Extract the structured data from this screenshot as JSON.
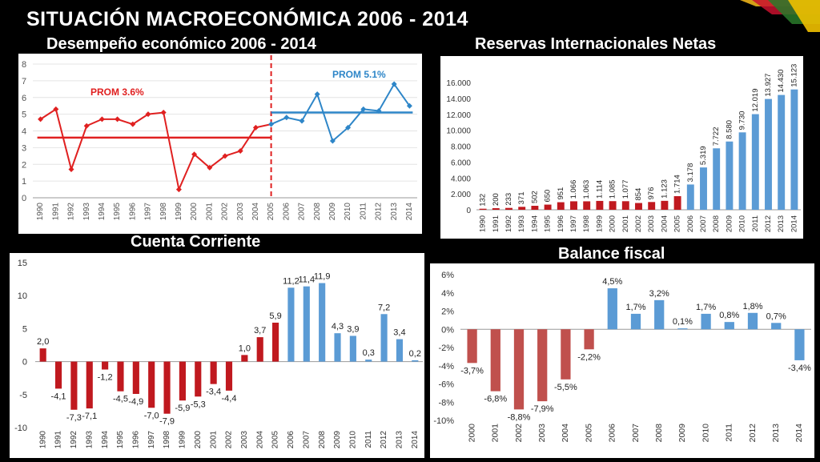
{
  "page_title": "SITUACIÓN MACROECONÓMICA 2006 - 2014",
  "colors": {
    "red": "#e02020",
    "blue": "#2e86c8",
    "bar_red": "#c0191f",
    "bar_blue": "#5b9bd5",
    "fiscal_red": "#c0504d"
  },
  "chart_data": [
    {
      "type": "line",
      "title": "Desempeño económico 2006 - 2014",
      "x": [
        "1990",
        "1991",
        "1992",
        "1993",
        "1994",
        "1995",
        "1996",
        "1997",
        "1998",
        "1999",
        "2000",
        "2001",
        "2002",
        "2003",
        "2004",
        "2005",
        "2006",
        "2007",
        "2008",
        "2009",
        "2010",
        "2011",
        "2012",
        "2013",
        "2014"
      ],
      "series": [
        {
          "values": [
            4.7,
            5.3,
            1.7,
            4.3,
            4.7,
            4.7,
            4.4,
            5.0,
            5.1,
            0.5,
            2.6,
            1.8,
            2.5,
            2.8,
            4.2,
            4.4,
            4.8,
            4.6,
            6.2,
            3.4,
            4.2,
            5.3,
            5.2,
            6.8,
            5.5
          ]
        }
      ],
      "averages": [
        {
          "label": "PROM 3.6%",
          "value": 3.6,
          "from": "1990",
          "to": "2005"
        },
        {
          "label": "PROM 5.1%",
          "value": 5.1,
          "from": "2005",
          "to": "2014"
        }
      ],
      "ylim": [
        0,
        8
      ],
      "yticks": [
        "0",
        "1",
        "2",
        "3",
        "4",
        "5",
        "6",
        "7",
        "8"
      ],
      "divider_at": "2005"
    },
    {
      "type": "bar",
      "title": "Reservas Internacionales Netas",
      "categories": [
        "1990",
        "1991",
        "1992",
        "1993",
        "1994",
        "1995",
        "1996",
        "1997",
        "1998",
        "1999",
        "2000",
        "2001",
        "2002",
        "2003",
        "2004",
        "2005",
        "2006",
        "2007",
        "2008",
        "2009",
        "2010",
        "2011",
        "2012",
        "2013",
        "2014"
      ],
      "values": [
        132,
        200,
        233,
        371,
        502,
        650,
        951,
        1066,
        1063,
        1114,
        1085,
        1077,
        854,
        976,
        1123,
        1714,
        3178,
        5319,
        7722,
        8580,
        9730,
        12019,
        13927,
        14430,
        15123
      ],
      "labels": [
        "132",
        "200",
        "233",
        "371",
        "502",
        "650",
        "951",
        "1.066",
        "1.063",
        "1.114",
        "1.085",
        "1.077",
        "854",
        "976",
        "1.123",
        "1.714",
        "3.178",
        "5.319",
        "7.722",
        "8.580",
        "9.730",
        "12.019",
        "13.927",
        "14.430",
        "15.123"
      ],
      "ylim": [
        0,
        16000
      ],
      "yticks": [
        "0",
        "2.000",
        "4.000",
        "6.000",
        "8.000",
        "10.000",
        "12.000",
        "14.000",
        "16.000"
      ],
      "blue_from": "2006"
    },
    {
      "type": "bar",
      "title": "Cuenta Corriente",
      "categories": [
        "1990",
        "1991",
        "1992",
        "1993",
        "1994",
        "1995",
        "1996",
        "1997",
        "1998",
        "1999",
        "2000",
        "2001",
        "2002",
        "2003",
        "2004",
        "2005",
        "2006",
        "2007",
        "2008",
        "2009",
        "2010",
        "2011",
        "2012",
        "2013",
        "2014"
      ],
      "values": [
        2.0,
        -4.1,
        -7.3,
        -7.1,
        -1.2,
        -4.5,
        -4.9,
        -7.0,
        -7.9,
        -5.9,
        -5.3,
        -3.4,
        -4.4,
        1.0,
        3.7,
        5.9,
        11.2,
        11.4,
        11.9,
        4.3,
        3.9,
        0.3,
        7.2,
        3.4,
        0.2
      ],
      "labels": [
        "2,0",
        "-4,1",
        "-7,3",
        "-7,1",
        "-1,2",
        "-4,5",
        "-4,9",
        "-7,0",
        "-7,9",
        "-5,9",
        "-5,3",
        "-3,4",
        "-4,4",
        "1,0",
        "3,7",
        "5,9",
        "11,2",
        "11,4",
        "11,9",
        "4,3",
        "3,9",
        "0,3",
        "7,2",
        "3,4",
        "0,2"
      ],
      "ylim": [
        -10,
        15
      ],
      "yticks": [
        "-10",
        "-5",
        "0",
        "5",
        "10",
        "15"
      ],
      "blue_from": "2006"
    },
    {
      "type": "bar",
      "title": "Balance fiscal",
      "categories": [
        "2000",
        "2001",
        "2002",
        "2003",
        "2004",
        "2005",
        "2006",
        "2007",
        "2008",
        "2009",
        "2010",
        "2011",
        "2012",
        "2013",
        "2014"
      ],
      "values": [
        -3.7,
        -6.8,
        -8.8,
        -7.9,
        -5.5,
        -2.2,
        4.5,
        1.7,
        3.2,
        0.1,
        1.7,
        0.8,
        1.8,
        0.7,
        -3.4
      ],
      "labels": [
        "-3,7%",
        "-6,8%",
        "-8,8%",
        "-7,9%",
        "-5,5%",
        "-2,2%",
        "4,5%",
        "1,7%",
        "3,2%",
        "0,1%",
        "1,7%",
        "0,8%",
        "1,8%",
        "0,7%",
        "-3,4%"
      ],
      "ylim": [
        -10,
        6
      ],
      "yticks": [
        "-10%",
        "-8%",
        "-6%",
        "-4%",
        "-2%",
        "0%",
        "2%",
        "4%",
        "6%"
      ],
      "blue_from": "2006"
    }
  ]
}
